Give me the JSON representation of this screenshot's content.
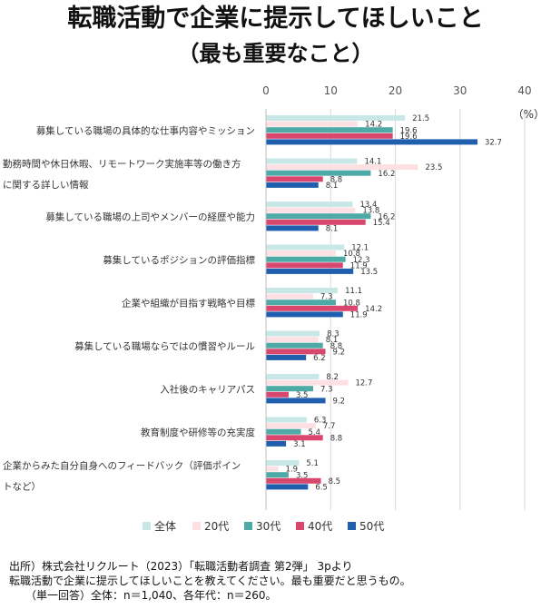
{
  "chart_data": {
    "type": "bar",
    "orientation": "horizontal",
    "title": "転職活動で企業に提示してほしいこと",
    "subtitle": "（最も重要なこと）",
    "unit": "（%）",
    "xlim": [
      0,
      40
    ],
    "xticks": [
      0,
      10,
      20,
      30,
      40
    ],
    "grid": true,
    "legend_position": "bottom",
    "categories": [
      [
        "募集している職場の具体的な仕事内容やミッション"
      ],
      [
        "勤務時間や休日休暇、リモートワーク実施率等の働き方",
        "に関する詳しい情報"
      ],
      [
        "募集している職場の上司やメンバーの経歴や能力"
      ],
      [
        "募集しているポジションの評価指標"
      ],
      [
        "企業や組織が目指す戦略や目標"
      ],
      [
        "募集している職場ならではの慣習やルール"
      ],
      [
        "入社後のキャリアパス"
      ],
      [
        "教育制度や研修等の充実度"
      ],
      [
        "企業からみた自分自身へのフィードバック（評価ポイン",
        "トなど）"
      ]
    ],
    "series": [
      {
        "name": "全体",
        "color": "#c8e8e8",
        "values": [
          21.5,
          14.1,
          13.4,
          12.1,
          11.1,
          8.3,
          8.2,
          6.3,
          5.1
        ]
      },
      {
        "name": "20代",
        "color": "#fde0e3",
        "values": [
          14.2,
          23.5,
          13.8,
          10.8,
          7.3,
          8.1,
          12.7,
          7.7,
          1.9
        ]
      },
      {
        "name": "30代",
        "color": "#4daaa6",
        "values": [
          19.6,
          16.2,
          16.2,
          12.3,
          10.8,
          8.8,
          7.3,
          5.4,
          3.5
        ]
      },
      {
        "name": "40代",
        "color": "#d9476f",
        "values": [
          19.6,
          8.8,
          15.4,
          11.9,
          14.2,
          9.2,
          3.5,
          8.8,
          8.5
        ]
      },
      {
        "name": "50代",
        "color": "#1f5fae",
        "values": [
          32.7,
          8.1,
          8.1,
          13.5,
          11.9,
          6.2,
          9.2,
          3.1,
          6.5
        ]
      }
    ]
  },
  "footnotes": {
    "line1": "出所）株式会社リクルート（2023）「転職活動者調査 第2弾」 3pより",
    "line2": "転職活動で企業に提示してほしいことを教えてください。最も重要だと思うもの。",
    "line3": "　　（単一回答）全体：n＝1,040、各年代：n＝260。"
  }
}
